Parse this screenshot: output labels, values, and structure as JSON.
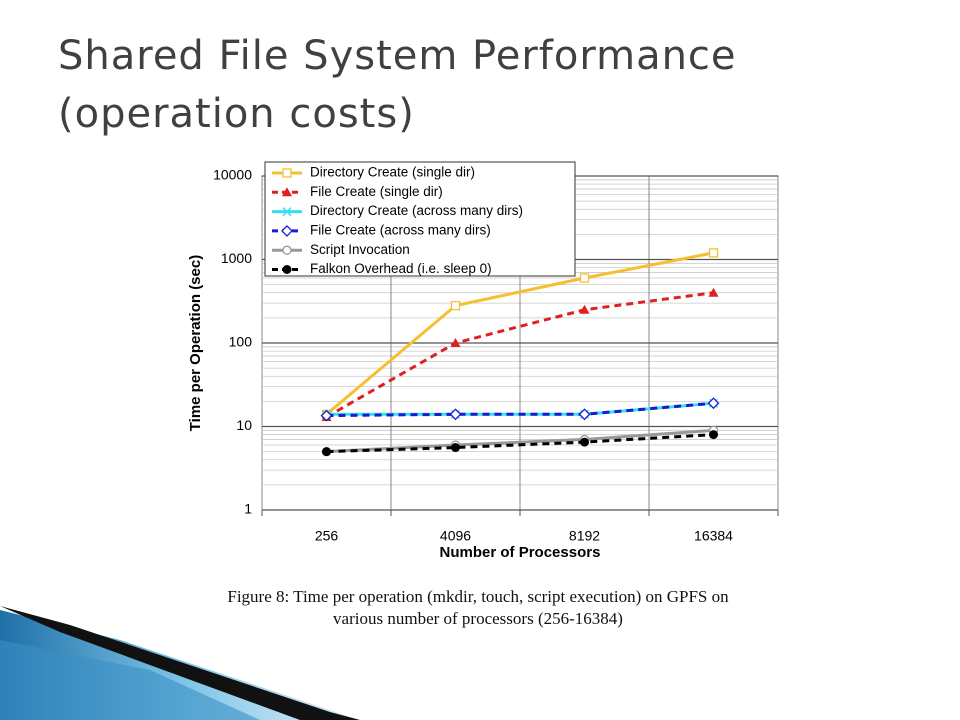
{
  "slide": {
    "title": [
      "Shared File System Performance",
      "(operation costs)"
    ],
    "caption": [
      "Figure 8: Time per operation (mkdir, touch, script execution) on GPFS on",
      "various number of processors (256-16384)"
    ]
  },
  "chart_data": {
    "type": "line",
    "x_label": "Number of Processors",
    "y_label": "Time per Operation (sec)",
    "categories": [
      "256",
      "4096",
      "8192",
      "16384"
    ],
    "log_scale_y": true,
    "ylim": [
      1,
      10000
    ],
    "yticks": [
      1,
      10,
      100,
      1000,
      10000
    ],
    "minor_yticks": [
      2,
      3,
      4,
      5,
      6,
      7,
      8,
      9,
      20,
      30,
      40,
      50,
      60,
      70,
      80,
      90,
      200,
      300,
      400,
      500,
      600,
      700,
      800,
      900,
      2000,
      3000,
      4000,
      5000,
      6000,
      7000,
      8000,
      9000
    ],
    "grid": true,
    "legend": "top-left",
    "series": [
      {
        "name": "Directory Create (single dir)",
        "color": "#f5c030",
        "dashed": false,
        "marker": "square-open",
        "values": [
          14,
          280,
          600,
          1200
        ]
      },
      {
        "name": "File Create (single dir)",
        "color": "#e02020",
        "dashed": true,
        "marker": "triangle",
        "values": [
          13,
          100,
          250,
          400
        ]
      },
      {
        "name": "Directory Create (across many dirs)",
        "color": "#33e0f0",
        "dashed": false,
        "marker": "x",
        "values": [
          14,
          14,
          14,
          19
        ]
      },
      {
        "name": "File Create (across many dirs)",
        "color": "#1a1ad0",
        "dashed": true,
        "marker": "diamond-open",
        "values": [
          13.5,
          14,
          14,
          19
        ]
      },
      {
        "name": "Script Invocation",
        "color": "#999999",
        "dashed": false,
        "marker": "circle-open",
        "values": [
          5,
          6,
          7,
          9
        ]
      },
      {
        "name": "Falkon Overhead (i.e. sleep 0)",
        "color": "#000000",
        "dashed": true,
        "marker": "circle",
        "values": [
          5,
          5.6,
          6.5,
          8
        ]
      }
    ]
  }
}
